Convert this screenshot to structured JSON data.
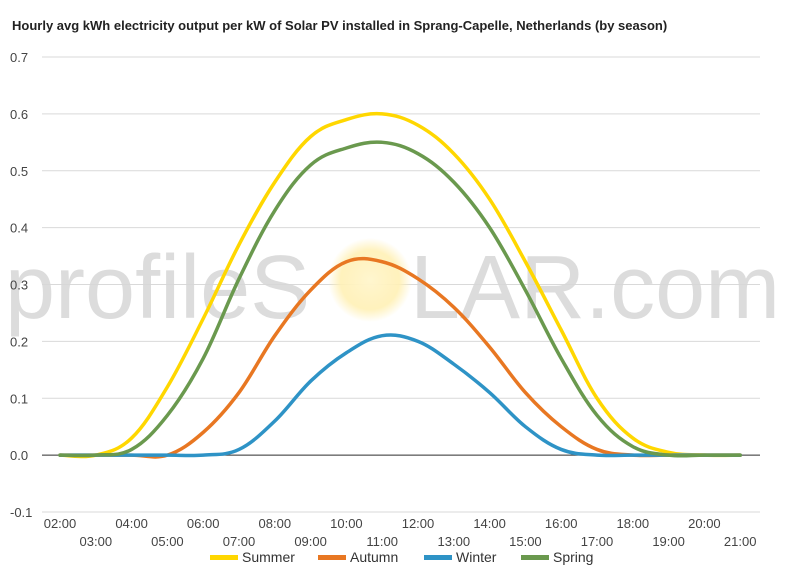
{
  "chart_data": {
    "type": "line",
    "title": "Hourly avg kWh electricity output per kW of Solar PV installed in Sprang-Capelle, Netherlands (by season)",
    "xlabel": "",
    "ylabel": "",
    "ylim": [
      -0.1,
      0.7
    ],
    "yticks": [
      "-0.1",
      "0.0",
      "0.1",
      "0.2",
      "0.3",
      "0.4",
      "0.5",
      "0.6",
      "0.7"
    ],
    "categories": [
      "02:00",
      "03:00",
      "04:00",
      "05:00",
      "06:00",
      "07:00",
      "08:00",
      "09:00",
      "10:00",
      "11:00",
      "12:00",
      "13:00",
      "14:00",
      "15:00",
      "16:00",
      "17:00",
      "18:00",
      "19:00",
      "20:00",
      "21:00"
    ],
    "grid": true,
    "legend_position": "bottom",
    "series": [
      {
        "name": "Summer",
        "color": "#ffd700",
        "values": [
          0.0,
          0.0,
          0.03,
          0.12,
          0.24,
          0.37,
          0.48,
          0.56,
          0.59,
          0.6,
          0.58,
          0.53,
          0.45,
          0.34,
          0.22,
          0.1,
          0.03,
          0.005,
          0.0,
          0.0
        ]
      },
      {
        "name": "Autumn",
        "color": "#e87722",
        "values": [
          0.0,
          0.0,
          0.0,
          0.0,
          0.04,
          0.11,
          0.21,
          0.29,
          0.34,
          0.34,
          0.31,
          0.26,
          0.19,
          0.11,
          0.05,
          0.01,
          0.0,
          0.0,
          0.0,
          0.0
        ]
      },
      {
        "name": "Winter",
        "color": "#2e93c6",
        "values": [
          0.0,
          0.0,
          0.0,
          0.0,
          0.0,
          0.01,
          0.06,
          0.13,
          0.18,
          0.21,
          0.2,
          0.16,
          0.11,
          0.05,
          0.01,
          0.0,
          0.0,
          0.0,
          0.0,
          0.0
        ]
      },
      {
        "name": "Spring",
        "color": "#6a994e",
        "values": [
          0.0,
          0.0,
          0.01,
          0.07,
          0.17,
          0.31,
          0.43,
          0.51,
          0.54,
          0.55,
          0.53,
          0.48,
          0.4,
          0.29,
          0.17,
          0.07,
          0.015,
          0.0,
          0.0,
          0.0
        ]
      }
    ]
  },
  "watermark": {
    "text_left": "profileS",
    "text_right": "LAR.com",
    "sun_color": "#fff3c4"
  }
}
